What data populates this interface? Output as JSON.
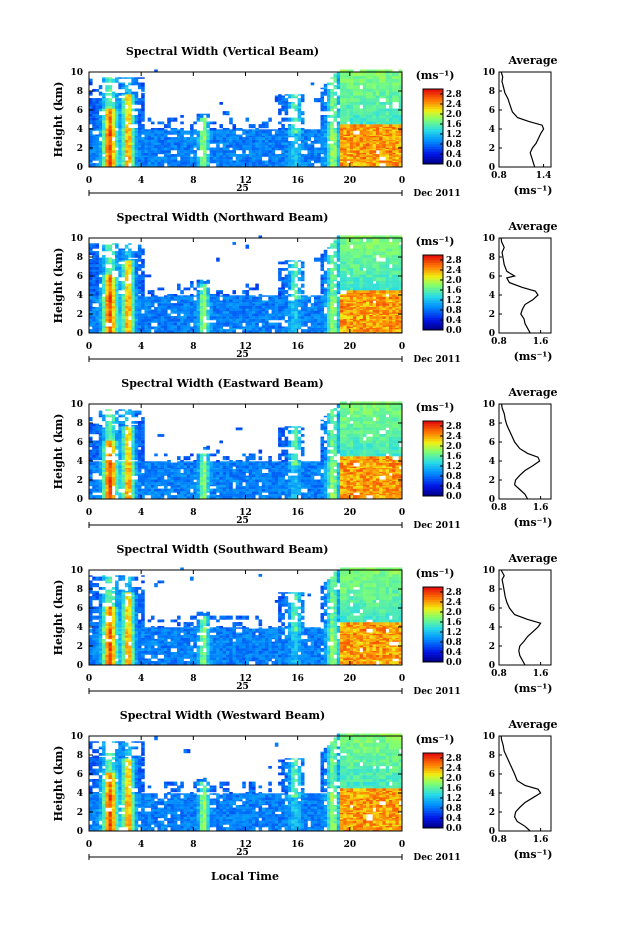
{
  "figure": {
    "xlabel": "Local Time"
  },
  "chart_data": [
    {
      "type": "heatmap",
      "title": "Spectral Width (Vertical Beam)",
      "ylabel": "Height (km)",
      "xticks": [
        "0",
        "4",
        "8",
        "12",
        "16",
        "20",
        "0"
      ],
      "yticks": [
        "0",
        "2",
        "4",
        "6",
        "8",
        "10"
      ],
      "xlim": [
        0,
        24
      ],
      "ylim": [
        0,
        10
      ],
      "day_label": "25",
      "date_label": "Dec 2011",
      "colorbar": {
        "unit": "(ms⁻¹)",
        "ticks": [
          "0.0",
          "0.4",
          "0.8",
          "1.2",
          "1.6",
          "2.0",
          "2.4",
          "2.8"
        ],
        "range": [
          0,
          3.0
        ]
      },
      "average": {
        "title": "Average",
        "xlabel": "(ms⁻¹)",
        "xticks": [
          "0.8",
          "1.4"
        ],
        "xlim": [
          0.8,
          1.5
        ],
        "yticks": [
          "0",
          "2",
          "4",
          "6",
          "8",
          "10"
        ],
        "profile": [
          [
            1.28,
            0
          ],
          [
            1.26,
            0.5
          ],
          [
            1.24,
            1.0
          ],
          [
            1.22,
            1.5
          ],
          [
            1.25,
            2.0
          ],
          [
            1.3,
            2.5
          ],
          [
            1.33,
            3.0
          ],
          [
            1.36,
            3.5
          ],
          [
            1.4,
            4.0
          ],
          [
            1.38,
            4.4
          ],
          [
            1.2,
            4.8
          ],
          [
            1.05,
            5.2
          ],
          [
            0.98,
            5.8
          ],
          [
            0.95,
            6.5
          ],
          [
            0.92,
            7.2
          ],
          [
            0.88,
            7.8
          ],
          [
            0.86,
            8.4
          ],
          [
            0.84,
            9.0
          ],
          [
            0.85,
            9.5
          ],
          [
            0.83,
            10.0
          ]
        ]
      }
    },
    {
      "type": "heatmap",
      "title": "Spectral Width (Northward Beam)",
      "ylabel": "Height (km)",
      "xticks": [
        "0",
        "4",
        "8",
        "12",
        "16",
        "20",
        "0"
      ],
      "yticks": [
        "0",
        "2",
        "4",
        "6",
        "8",
        "10"
      ],
      "xlim": [
        0,
        24
      ],
      "ylim": [
        0,
        10
      ],
      "day_label": "25",
      "date_label": "Dec 2011",
      "colorbar": {
        "unit": "(ms⁻¹)",
        "ticks": [
          "0.0",
          "0.4",
          "0.8",
          "1.2",
          "1.6",
          "2.0",
          "2.4",
          "2.8"
        ],
        "range": [
          0,
          3.0
        ]
      },
      "average": {
        "title": "Average",
        "xlabel": "(ms⁻¹)",
        "xticks": [
          "0.8",
          "1.6"
        ],
        "xlim": [
          0.8,
          1.8
        ],
        "yticks": [
          "0",
          "2",
          "4",
          "6",
          "8",
          "10"
        ],
        "profile": [
          [
            1.4,
            0
          ],
          [
            1.35,
            0.5
          ],
          [
            1.3,
            1.0
          ],
          [
            1.28,
            1.5
          ],
          [
            1.22,
            2.0
          ],
          [
            1.25,
            2.5
          ],
          [
            1.3,
            3.0
          ],
          [
            1.45,
            3.5
          ],
          [
            1.55,
            4.0
          ],
          [
            1.5,
            4.4
          ],
          [
            1.25,
            4.8
          ],
          [
            1.0,
            5.3
          ],
          [
            0.95,
            5.8
          ],
          [
            1.1,
            6.0
          ],
          [
            0.95,
            6.5
          ],
          [
            0.9,
            7.2
          ],
          [
            0.88,
            7.8
          ],
          [
            0.86,
            8.5
          ],
          [
            0.9,
            9.0
          ],
          [
            0.85,
            9.6
          ],
          [
            0.84,
            10.0
          ]
        ]
      }
    },
    {
      "type": "heatmap",
      "title": "Spectral Width (Eastward Beam)",
      "ylabel": "Height (km)",
      "xticks": [
        "0",
        "4",
        "8",
        "12",
        "16",
        "20",
        "0"
      ],
      "yticks": [
        "0",
        "2",
        "4",
        "6",
        "8",
        "10"
      ],
      "xlim": [
        0,
        24
      ],
      "ylim": [
        0,
        10
      ],
      "day_label": "25",
      "date_label": "Dec 2011",
      "colorbar": {
        "unit": "(ms⁻¹)",
        "ticks": [
          "0.0",
          "0.4",
          "0.8",
          "1.2",
          "1.6",
          "2.0",
          "2.4",
          "2.8"
        ],
        "range": [
          0,
          3.0
        ]
      },
      "average": {
        "title": "Average",
        "xlabel": "(ms⁻¹)",
        "xticks": [
          "0.8",
          "1.6"
        ],
        "xlim": [
          0.8,
          1.8
        ],
        "yticks": [
          "0",
          "2",
          "4",
          "6",
          "8",
          "10"
        ],
        "profile": [
          [
            1.35,
            0
          ],
          [
            1.3,
            0.5
          ],
          [
            1.2,
            1.0
          ],
          [
            1.1,
            1.5
          ],
          [
            1.12,
            2.0
          ],
          [
            1.2,
            2.5
          ],
          [
            1.3,
            3.0
          ],
          [
            1.45,
            3.5
          ],
          [
            1.58,
            4.0
          ],
          [
            1.55,
            4.4
          ],
          [
            1.35,
            4.8
          ],
          [
            1.2,
            5.3
          ],
          [
            1.1,
            6.0
          ],
          [
            1.05,
            6.6
          ],
          [
            1.0,
            7.2
          ],
          [
            0.95,
            7.8
          ],
          [
            0.92,
            8.4
          ],
          [
            0.9,
            9.0
          ],
          [
            0.86,
            9.6
          ],
          [
            0.85,
            10.0
          ]
        ]
      }
    },
    {
      "type": "heatmap",
      "title": "Spectral Width (Southward Beam)",
      "ylabel": "Height (km)",
      "xticks": [
        "0",
        "4",
        "8",
        "12",
        "16",
        "20",
        "0"
      ],
      "yticks": [
        "0",
        "2",
        "4",
        "6",
        "8",
        "10"
      ],
      "xlim": [
        0,
        24
      ],
      "ylim": [
        0,
        10
      ],
      "day_label": "25",
      "date_label": "Dec 2011",
      "colorbar": {
        "unit": "(ms⁻¹)",
        "ticks": [
          "0.0",
          "0.4",
          "0.8",
          "1.2",
          "1.6",
          "2.0",
          "2.4",
          "2.8"
        ],
        "range": [
          0,
          3.0
        ]
      },
      "average": {
        "title": "Average",
        "xlabel": "(ms⁻¹)",
        "xticks": [
          "0.8",
          "1.6"
        ],
        "xlim": [
          0.8,
          1.8
        ],
        "yticks": [
          "0",
          "2",
          "4",
          "6",
          "8",
          "10"
        ],
        "profile": [
          [
            1.3,
            0
          ],
          [
            1.25,
            0.5
          ],
          [
            1.2,
            1.0
          ],
          [
            1.18,
            1.5
          ],
          [
            1.2,
            2.0
          ],
          [
            1.28,
            2.5
          ],
          [
            1.35,
            3.0
          ],
          [
            1.45,
            3.5
          ],
          [
            1.55,
            4.0
          ],
          [
            1.6,
            4.4
          ],
          [
            1.35,
            4.8
          ],
          [
            1.1,
            5.3
          ],
          [
            1.0,
            6.0
          ],
          [
            0.95,
            6.6
          ],
          [
            0.92,
            7.2
          ],
          [
            0.9,
            7.8
          ],
          [
            0.88,
            8.4
          ],
          [
            0.86,
            9.0
          ],
          [
            0.9,
            9.4
          ],
          [
            0.84,
            10.0
          ]
        ]
      }
    },
    {
      "type": "heatmap",
      "title": "Spectral Width (Westward Beam)",
      "ylabel": "Height (km)",
      "xticks": [
        "0",
        "4",
        "8",
        "12",
        "16",
        "20",
        "0"
      ],
      "yticks": [
        "0",
        "2",
        "4",
        "6",
        "8",
        "10"
      ],
      "xlim": [
        0,
        24
      ],
      "ylim": [
        0,
        10
      ],
      "day_label": "25",
      "date_label": "Dec 2011",
      "colorbar": {
        "unit": "(ms⁻¹)",
        "ticks": [
          "0.0",
          "0.4",
          "0.8",
          "1.2",
          "1.6",
          "2.0",
          "2.4",
          "2.8"
        ],
        "range": [
          0,
          3.0
        ]
      },
      "average": {
        "title": "Average",
        "xlabel": "(ms⁻¹)",
        "xticks": [
          "0.8",
          "1.6"
        ],
        "xlim": [
          0.8,
          1.8
        ],
        "yticks": [
          "0",
          "2",
          "4",
          "6",
          "8",
          "10"
        ],
        "profile": [
          [
            1.4,
            0
          ],
          [
            1.3,
            0.5
          ],
          [
            1.15,
            1.0
          ],
          [
            1.1,
            1.5
          ],
          [
            1.12,
            2.0
          ],
          [
            1.2,
            2.5
          ],
          [
            1.3,
            3.0
          ],
          [
            1.45,
            3.5
          ],
          [
            1.6,
            4.0
          ],
          [
            1.55,
            4.4
          ],
          [
            1.3,
            4.8
          ],
          [
            1.15,
            5.3
          ],
          [
            1.1,
            6.0
          ],
          [
            1.05,
            6.6
          ],
          [
            1.0,
            7.2
          ],
          [
            0.95,
            7.8
          ],
          [
            0.9,
            8.4
          ],
          [
            0.88,
            9.0
          ],
          [
            0.85,
            9.6
          ],
          [
            0.84,
            10.0
          ]
        ]
      }
    }
  ]
}
